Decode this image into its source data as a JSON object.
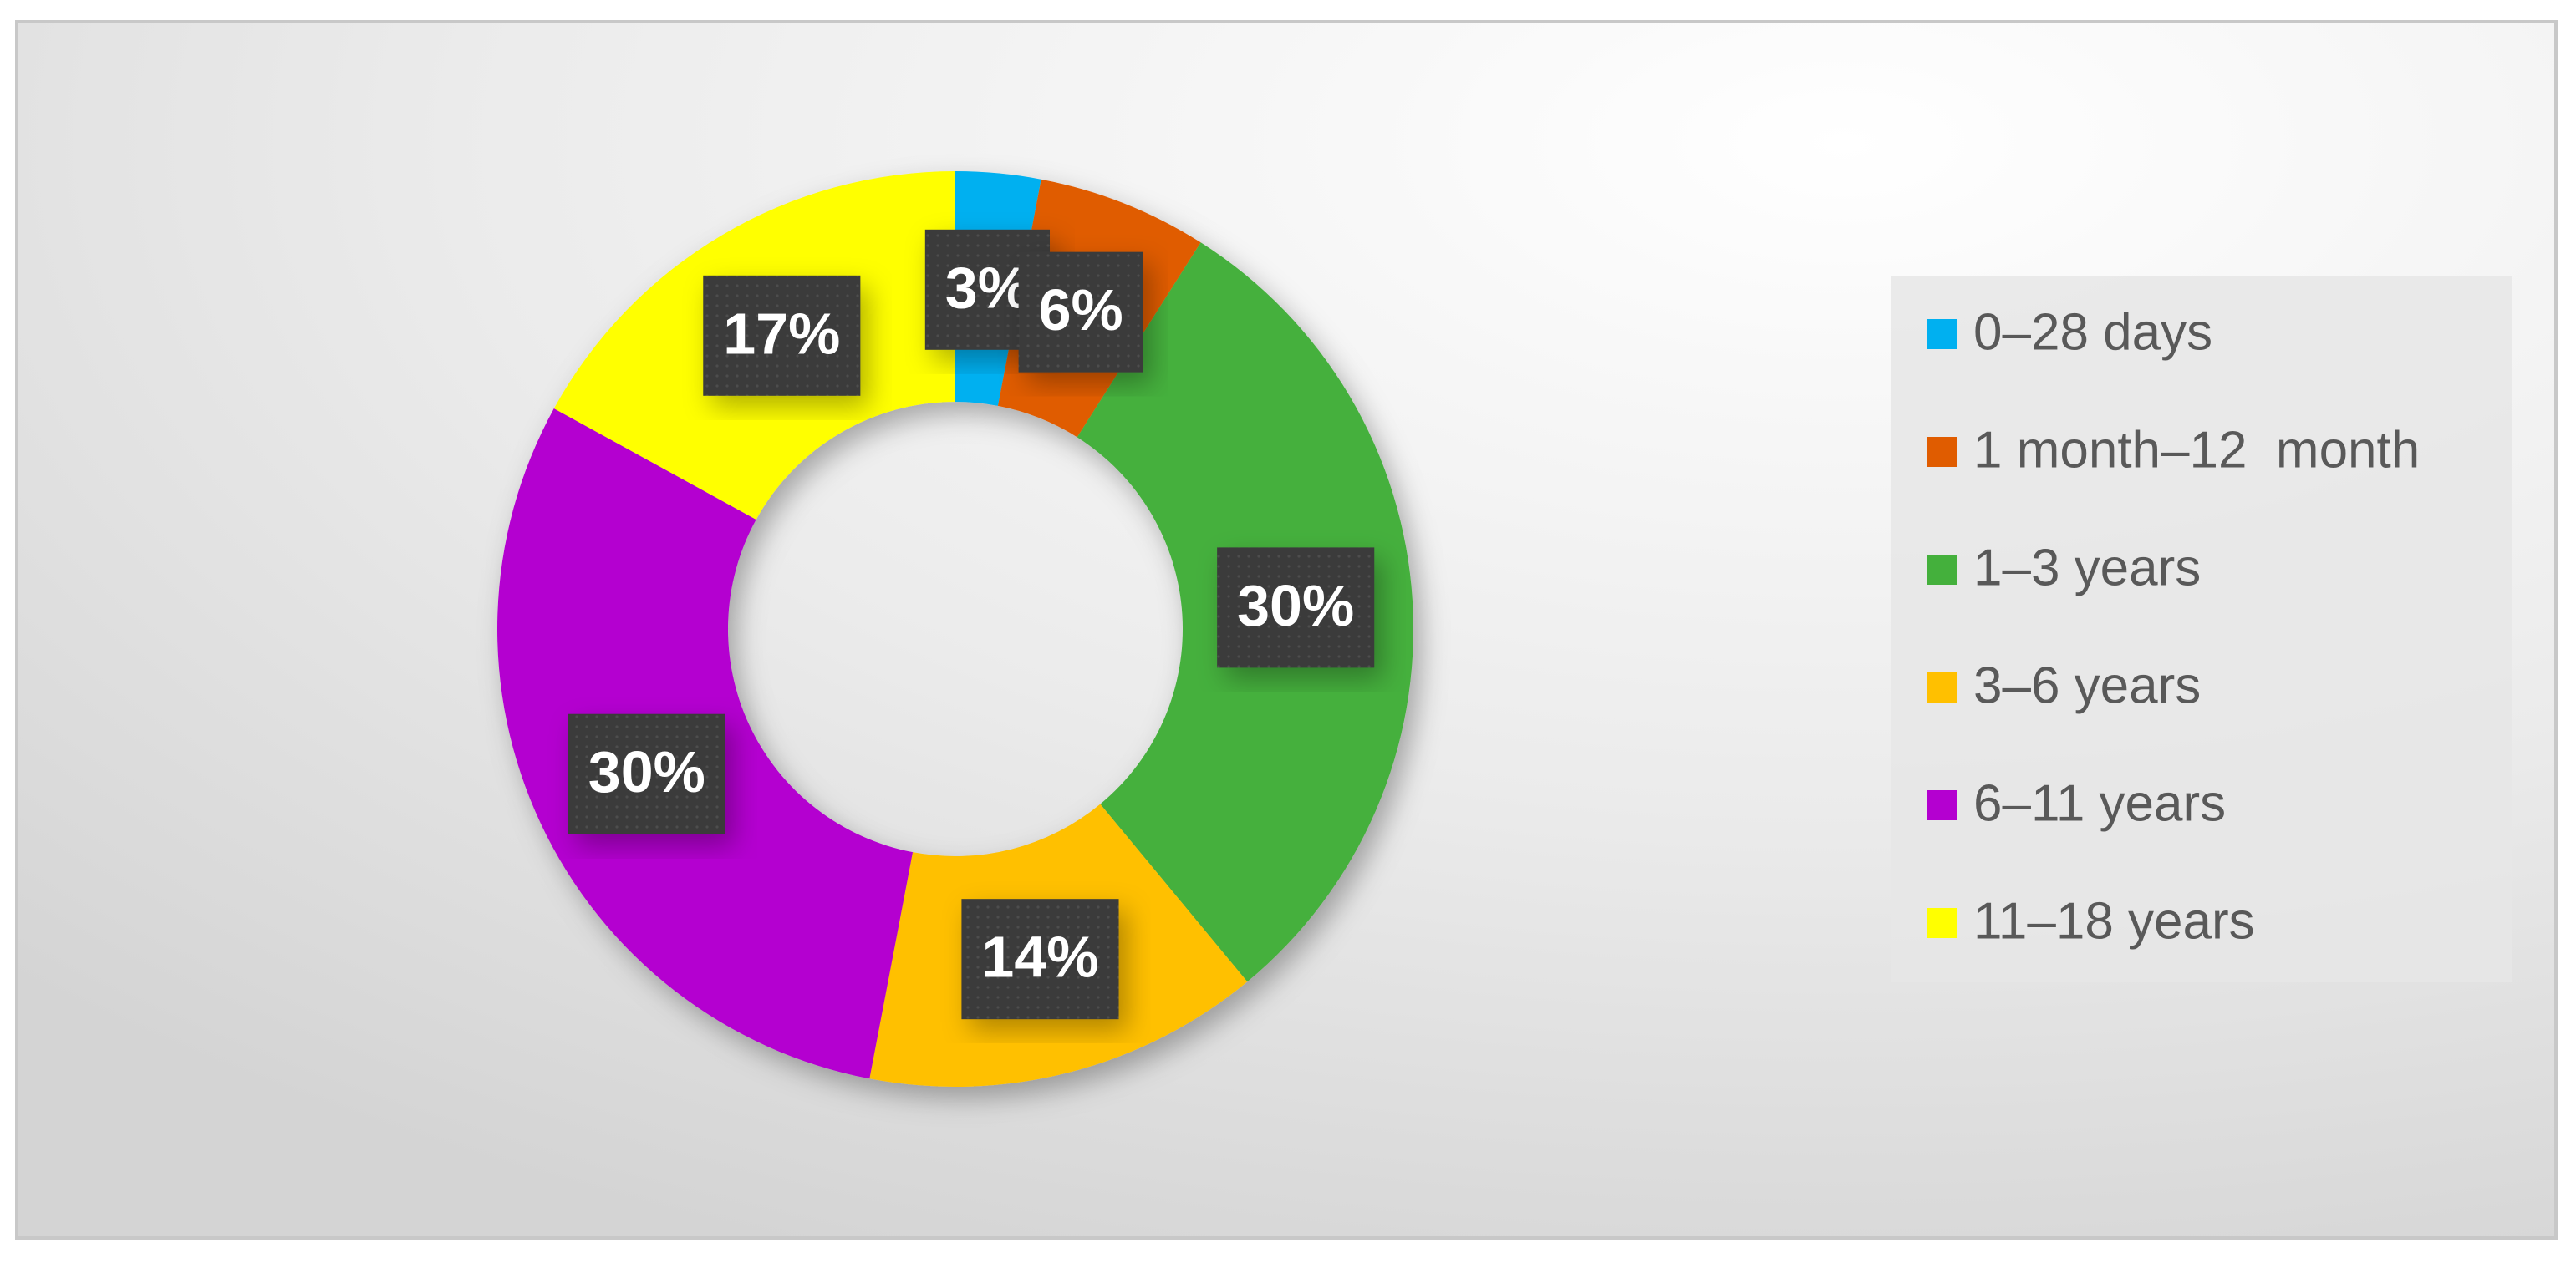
{
  "chart_data": {
    "type": "pie",
    "categories": [
      "0–28 days",
      "1 month–12  month",
      "1–3 years",
      "3–6 years",
      "6–11 years",
      "11–18 years"
    ],
    "values": [
      3,
      6,
      30,
      14,
      30,
      17
    ],
    "value_labels": [
      "3%",
      "6%",
      "30%",
      "14%",
      "30%",
      "17%"
    ],
    "colors": [
      "#00b0f0",
      "#e05c00",
      "#44b03c",
      "#ffc000",
      "#b400d0",
      "#ffff00"
    ],
    "legend": "right"
  }
}
